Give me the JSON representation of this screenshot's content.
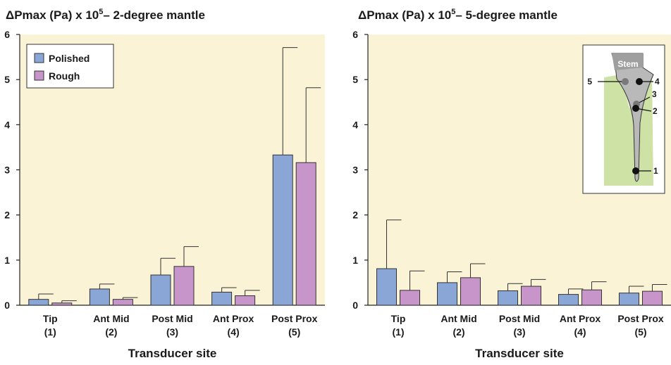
{
  "colors": {
    "panel_bg": "#fbf3d6",
    "polished": "#8aa6d6",
    "rough": "#c795c9",
    "inset_bg": "#ffffff",
    "inset_tissue": "#cfe2a6",
    "inset_stem": "#b9b9b9",
    "inset_stem_top": "#9f9f9f"
  },
  "legend": {
    "polished": "Polished",
    "rough": "Rough"
  },
  "inset": {
    "stem_label": "Stem",
    "points": [
      {
        "label": "5",
        "color": "#7a7a7a",
        "label_side": "left"
      },
      {
        "label": "4",
        "color": "#111111",
        "label_side": "right"
      },
      {
        "label": "3",
        "color": "#7a7a7a",
        "label_side": "right"
      },
      {
        "label": "2",
        "color": "#111111",
        "label_side": "right"
      },
      {
        "label": "1",
        "color": "#111111",
        "label_side": "right"
      }
    ]
  },
  "chart_data": [
    {
      "type": "bar",
      "title_prefix": "ΔPmax (Pa) x 10",
      "title_sup": "5",
      "title_suffix": "– 2-degree mantle",
      "xlabel": "Transducer site",
      "ylim": [
        0,
        6
      ],
      "yticks": [
        "0",
        "1",
        "2",
        "3",
        "4",
        "5",
        "6"
      ],
      "categories": [
        [
          "Tip",
          "(1)"
        ],
        [
          "Ant Mid",
          "(2)"
        ],
        [
          "Post Mid",
          "(3)"
        ],
        [
          "Ant Prox",
          "(4)"
        ],
        [
          "Post Prox",
          "(5)"
        ]
      ],
      "series": [
        {
          "name": "Polished",
          "values": [
            0.13,
            0.36,
            0.67,
            0.29,
            3.33
          ],
          "errors": [
            0.12,
            0.11,
            0.37,
            0.1,
            2.38
          ]
        },
        {
          "name": "Rough",
          "values": [
            0.05,
            0.13,
            0.86,
            0.21,
            3.16
          ],
          "errors": [
            0.05,
            0.04,
            0.44,
            0.12,
            1.66
          ]
        }
      ],
      "legend_position": "top-left"
    },
    {
      "type": "bar",
      "title_prefix": "ΔPmax (Pa) x 10",
      "title_sup": "5",
      "title_suffix": "– 5-degree mantle",
      "xlabel": "Transducer site",
      "ylim": [
        0,
        6
      ],
      "yticks": [
        "0",
        "1",
        "2",
        "3",
        "4",
        "5",
        "6"
      ],
      "categories": [
        [
          "Tip",
          "(1)"
        ],
        [
          "Ant Mid",
          "(2)"
        ],
        [
          "Post Mid",
          "(3)"
        ],
        [
          "Ant Prox",
          "(4)"
        ],
        [
          "Post Prox",
          "(5)"
        ]
      ],
      "series": [
        {
          "name": "Polished",
          "values": [
            0.81,
            0.5,
            0.32,
            0.24,
            0.27
          ],
          "errors": [
            1.08,
            0.24,
            0.16,
            0.12,
            0.15
          ]
        },
        {
          "name": "Rough",
          "values": [
            0.33,
            0.61,
            0.42,
            0.34,
            0.31
          ],
          "errors": [
            0.43,
            0.31,
            0.15,
            0.18,
            0.15
          ]
        }
      ],
      "legend_position": "none"
    }
  ]
}
